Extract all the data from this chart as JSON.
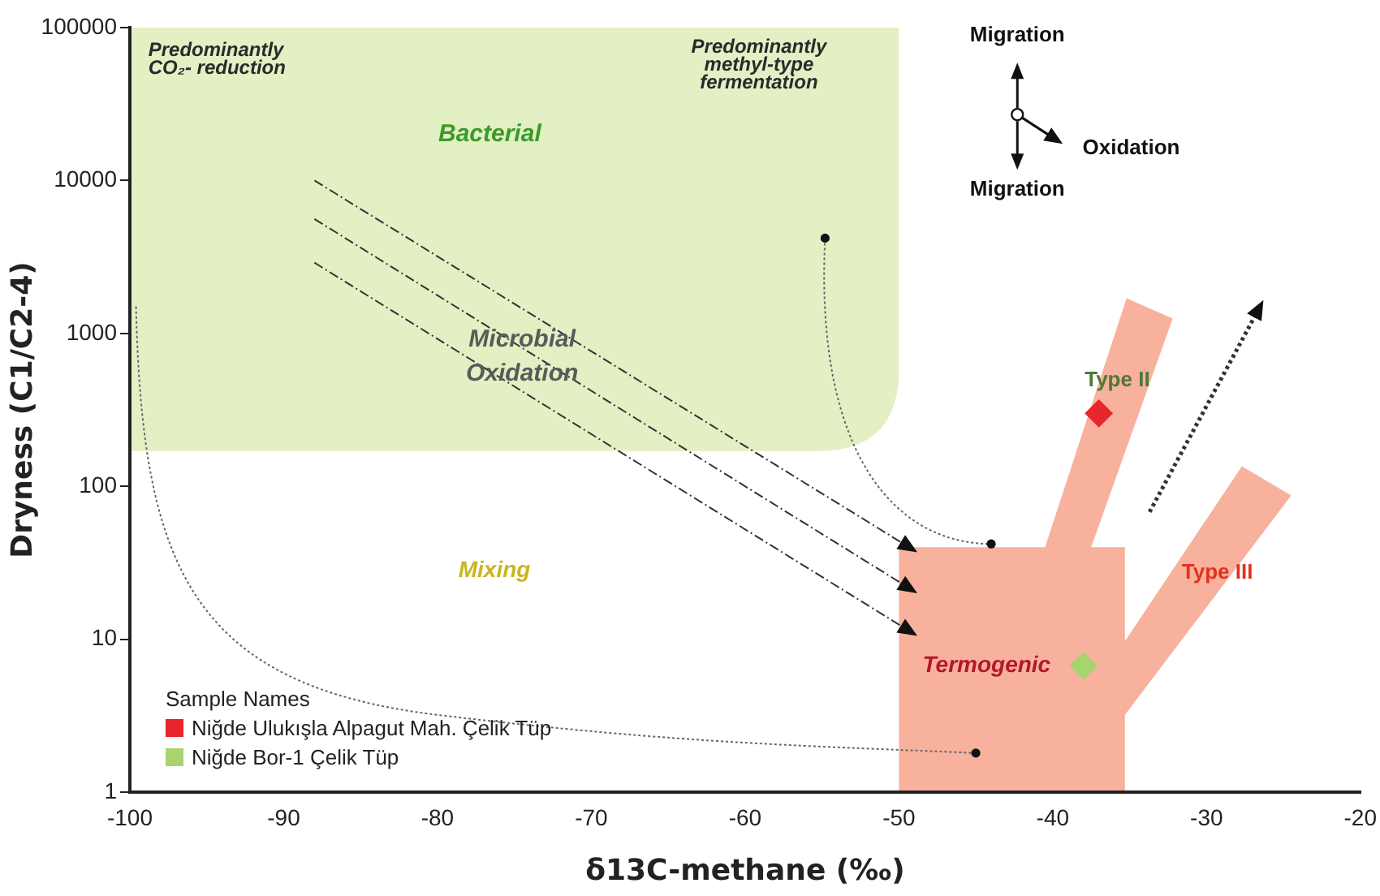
{
  "chart_data": {
    "type": "scatter",
    "xlabel": "δ13C-methane (‰)",
    "ylabel": "Dryness (C1/C2-4)",
    "legend_title": "Sample Names",
    "legend": "bottom left",
    "marker": "diamond",
    "log": "y",
    "grid": false,
    "xlim": [
      -100,
      -20
    ],
    "xticks": [
      -100,
      -90,
      -80,
      -70,
      -60,
      -50,
      -40,
      -30,
      -20
    ],
    "ylim": [
      1,
      100000
    ],
    "yticks": [
      1,
      10,
      100,
      1000,
      10000,
      100000
    ],
    "series": [
      {
        "name": "Niğde Ulukışla Alpagut Mah. Çelik Tüp",
        "color": "#e8262b",
        "x": [
          -37
        ],
        "values": [
          300
        ]
      },
      {
        "name": "Niğde Bor-1 Çelik Tüp",
        "color": "#a8d470",
        "x": [
          -38
        ],
        "values": [
          6.7
        ]
      }
    ],
    "annotations": [
      "Predominantly\nCO₂- reduction",
      "Predominantly\nmethyl-type\nfermentation",
      "Bacterial",
      "Microbial\nOxidation",
      "Mixing",
      "Termogenic",
      "Type II",
      "Type III",
      "Migration",
      "Oxidation",
      "Migration"
    ]
  }
}
